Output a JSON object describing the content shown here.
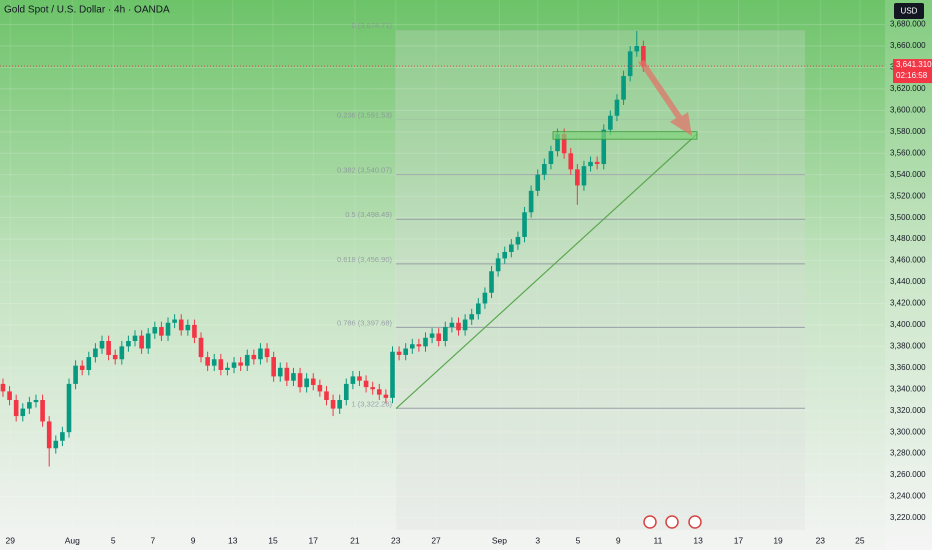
{
  "chart_data": {
    "type": "candlestick",
    "title": "Gold Spot / U.S. Dollar · 4h · OANDA",
    "currency": "USD",
    "up_color": "#089981",
    "down_color": "#f23645",
    "x": [
      0,
      1,
      2,
      3,
      4,
      5,
      6,
      7,
      8,
      9,
      10,
      11,
      12,
      13,
      14,
      15,
      16,
      17,
      18,
      19,
      20,
      21,
      22,
      23,
      24,
      25,
      26,
      27,
      28,
      29,
      30,
      31,
      32,
      33,
      34,
      35,
      36,
      37,
      38,
      39,
      40,
      41,
      42,
      43,
      44,
      45,
      46,
      47,
      48,
      49,
      50,
      51,
      52,
      53,
      54,
      55,
      56,
      57,
      58,
      59,
      60,
      61,
      62,
      63,
      64,
      65,
      66,
      67,
      68,
      69,
      70,
      71,
      72,
      73,
      74,
      75,
      76,
      77,
      78,
      79,
      80,
      81,
      82,
      83,
      84,
      85,
      86,
      87,
      88,
      89,
      90,
      91,
      92,
      93,
      94,
      95,
      96,
      97
    ],
    "open": [
      3345,
      3338,
      3330,
      3315,
      3322,
      3328,
      3330,
      3310,
      3285,
      3292,
      3300,
      3345,
      3362,
      3358,
      3370,
      3378,
      3385,
      3372,
      3368,
      3380,
      3385,
      3390,
      3378,
      3392,
      3398,
      3390,
      3402,
      3405,
      3395,
      3400,
      3388,
      3370,
      3362,
      3368,
      3358,
      3360,
      3365,
      3362,
      3372,
      3368,
      3378,
      3370,
      3352,
      3360,
      3348,
      3355,
      3342,
      3350,
      3344,
      3338,
      3330,
      3322,
      3330,
      3345,
      3352,
      3348,
      3342,
      3340,
      3335,
      3332,
      3375,
      3372,
      3378,
      3382,
      3380,
      3388,
      3392,
      3385,
      3398,
      3402,
      3395,
      3405,
      3410,
      3420,
      3430,
      3450,
      3462,
      3468,
      3475,
      3482,
      3505,
      3525,
      3540,
      3550,
      3562,
      3578,
      3560,
      3545,
      3530,
      3548,
      3552,
      3550,
      3582,
      3595,
      3610,
      3632,
      3655,
      3660
    ],
    "high": [
      3350,
      3343,
      3335,
      3327,
      3333,
      3335,
      3335,
      3315,
      3297,
      3305,
      3350,
      3367,
      3367,
      3375,
      3383,
      3390,
      3390,
      3377,
      3385,
      3390,
      3395,
      3395,
      3397,
      3403,
      3403,
      3407,
      3410,
      3410,
      3405,
      3405,
      3393,
      3375,
      3373,
      3373,
      3365,
      3370,
      3370,
      3377,
      3377,
      3383,
      3383,
      3375,
      3365,
      3365,
      3360,
      3360,
      3355,
      3355,
      3349,
      3343,
      3335,
      3335,
      3350,
      3357,
      3357,
      3353,
      3347,
      3345,
      3340,
      3380,
      3380,
      3383,
      3387,
      3387,
      3393,
      3397,
      3397,
      3403,
      3407,
      3407,
      3410,
      3415,
      3425,
      3435,
      3455,
      3467,
      3473,
      3480,
      3487,
      3510,
      3530,
      3545,
      3555,
      3567,
      3583,
      3583,
      3565,
      3550,
      3553,
      3557,
      3557,
      3587,
      3600,
      3615,
      3637,
      3660,
      3674,
      3665
    ],
    "low": [
      3333,
      3325,
      3310,
      3310,
      3317,
      3323,
      3305,
      3268,
      3280,
      3287,
      3295,
      3340,
      3353,
      3353,
      3365,
      3373,
      3367,
      3363,
      3363,
      3375,
      3380,
      3373,
      3373,
      3387,
      3385,
      3385,
      3397,
      3390,
      3390,
      3383,
      3365,
      3357,
      3357,
      3353,
      3353,
      3355,
      3357,
      3357,
      3363,
      3363,
      3365,
      3347,
      3347,
      3343,
      3343,
      3337,
      3337,
      3339,
      3333,
      3325,
      3315,
      3317,
      3325,
      3340,
      3343,
      3337,
      3335,
      3330,
      3327,
      3327,
      3367,
      3367,
      3373,
      3375,
      3375,
      3383,
      3380,
      3380,
      3393,
      3390,
      3390,
      3400,
      3405,
      3415,
      3425,
      3445,
      3457,
      3463,
      3470,
      3477,
      3500,
      3520,
      3535,
      3545,
      3557,
      3555,
      3540,
      3512,
      3525,
      3543,
      3545,
      3545,
      3577,
      3590,
      3605,
      3627,
      3650,
      3636
    ],
    "close": [
      3338,
      3330,
      3315,
      3322,
      3328,
      3330,
      3310,
      3285,
      3292,
      3300,
      3345,
      3362,
      3358,
      3370,
      3378,
      3385,
      3372,
      3368,
      3380,
      3385,
      3390,
      3378,
      3392,
      3398,
      3390,
      3402,
      3405,
      3395,
      3400,
      3388,
      3370,
      3362,
      3368,
      3358,
      3360,
      3365,
      3362,
      3372,
      3368,
      3378,
      3370,
      3352,
      3360,
      3348,
      3355,
      3342,
      3350,
      3344,
      3338,
      3330,
      3322,
      3330,
      3345,
      3352,
      3348,
      3342,
      3340,
      3335,
      3332,
      3375,
      3372,
      3378,
      3382,
      3380,
      3388,
      3392,
      3385,
      3398,
      3402,
      3395,
      3405,
      3410,
      3420,
      3430,
      3450,
      3462,
      3468,
      3475,
      3482,
      3505,
      3525,
      3540,
      3550,
      3562,
      3578,
      3560,
      3545,
      3530,
      3548,
      3552,
      3550,
      3582,
      3595,
      3610,
      3632,
      3655,
      3660,
      3641.31
    ],
    "xlim": [
      -0.45,
      133.6
    ],
    "ylim": [
      3208.8,
      3702.9
    ],
    "xticks": [
      {
        "value": 1.1,
        "label": "29"
      },
      {
        "value": 10.5,
        "label": "Aug"
      },
      {
        "value": 16.7,
        "label": "5"
      },
      {
        "value": 22.7,
        "label": "7"
      },
      {
        "value": 28.8,
        "label": "9"
      },
      {
        "value": 34.8,
        "label": "13"
      },
      {
        "value": 40.9,
        "label": "15"
      },
      {
        "value": 47,
        "label": "17"
      },
      {
        "value": 53.3,
        "label": "21"
      },
      {
        "value": 59.5,
        "label": "23"
      },
      {
        "value": 65.6,
        "label": "27"
      },
      {
        "value": 75.2,
        "label": "Sep"
      },
      {
        "value": 81,
        "label": "3"
      },
      {
        "value": 87.1,
        "label": "5"
      },
      {
        "value": 93.2,
        "label": "9"
      },
      {
        "value": 99.2,
        "label": "11"
      },
      {
        "value": 105.3,
        "label": "13"
      },
      {
        "value": 111.4,
        "label": "17"
      },
      {
        "value": 117.4,
        "label": "19"
      },
      {
        "value": 123.8,
        "label": "23"
      },
      {
        "value": 129.8,
        "label": "25"
      }
    ],
    "yticks": [
      {
        "value": 3220,
        "label": "3,220.000"
      },
      {
        "value": 3240,
        "label": "3,240.000"
      },
      {
        "value": 3260,
        "label": "3,260.000"
      },
      {
        "value": 3280,
        "label": "3,280.000"
      },
      {
        "value": 3300,
        "label": "3,300.000"
      },
      {
        "value": 3320,
        "label": "3,320.000"
      },
      {
        "value": 3340,
        "label": "3,340.000"
      },
      {
        "value": 3360,
        "label": "3,360.000"
      },
      {
        "value": 3380,
        "label": "3,380.000"
      },
      {
        "value": 3400,
        "label": "3,400.000"
      },
      {
        "value": 3420,
        "label": "3,420.000"
      },
      {
        "value": 3440,
        "label": "3,440.000"
      },
      {
        "value": 3460,
        "label": "3,460.000"
      },
      {
        "value": 3480,
        "label": "3,480.000"
      },
      {
        "value": 3500,
        "label": "3,500.000"
      },
      {
        "value": 3520,
        "label": "3,520.000"
      },
      {
        "value": 3540,
        "label": "3,540.000"
      },
      {
        "value": 3560,
        "label": "3,560.000"
      },
      {
        "value": 3580,
        "label": "3,580.000"
      },
      {
        "value": 3600,
        "label": "3,600.000"
      },
      {
        "value": 3620,
        "label": "3,620.000"
      },
      {
        "value": 3640,
        "label": "3,640.000"
      },
      {
        "value": 3660,
        "label": "3,660.000"
      },
      {
        "value": 3680,
        "label": "3,680.000"
      }
    ],
    "last_price": {
      "value": 3641.31,
      "label": "3,641.310",
      "countdown": "02:16:58"
    },
    "fib_levels": [
      {
        "value": 3674.71,
        "label": "0 (3,674.71)"
      },
      {
        "value": 3591.53,
        "label": "0.236 (3,591.53)"
      },
      {
        "value": 3540.07,
        "label": "0.382 (3,540.07)"
      },
      {
        "value": 3498.49,
        "label": "0.5 (3,498.49)"
      },
      {
        "value": 3456.9,
        "label": "0.618 (3,456.90)"
      },
      {
        "value": 3397.68,
        "label": "0.786 (3,397.68)"
      },
      {
        "value": 3322.26,
        "label": "1 (3,322.26)"
      }
    ]
  }
}
